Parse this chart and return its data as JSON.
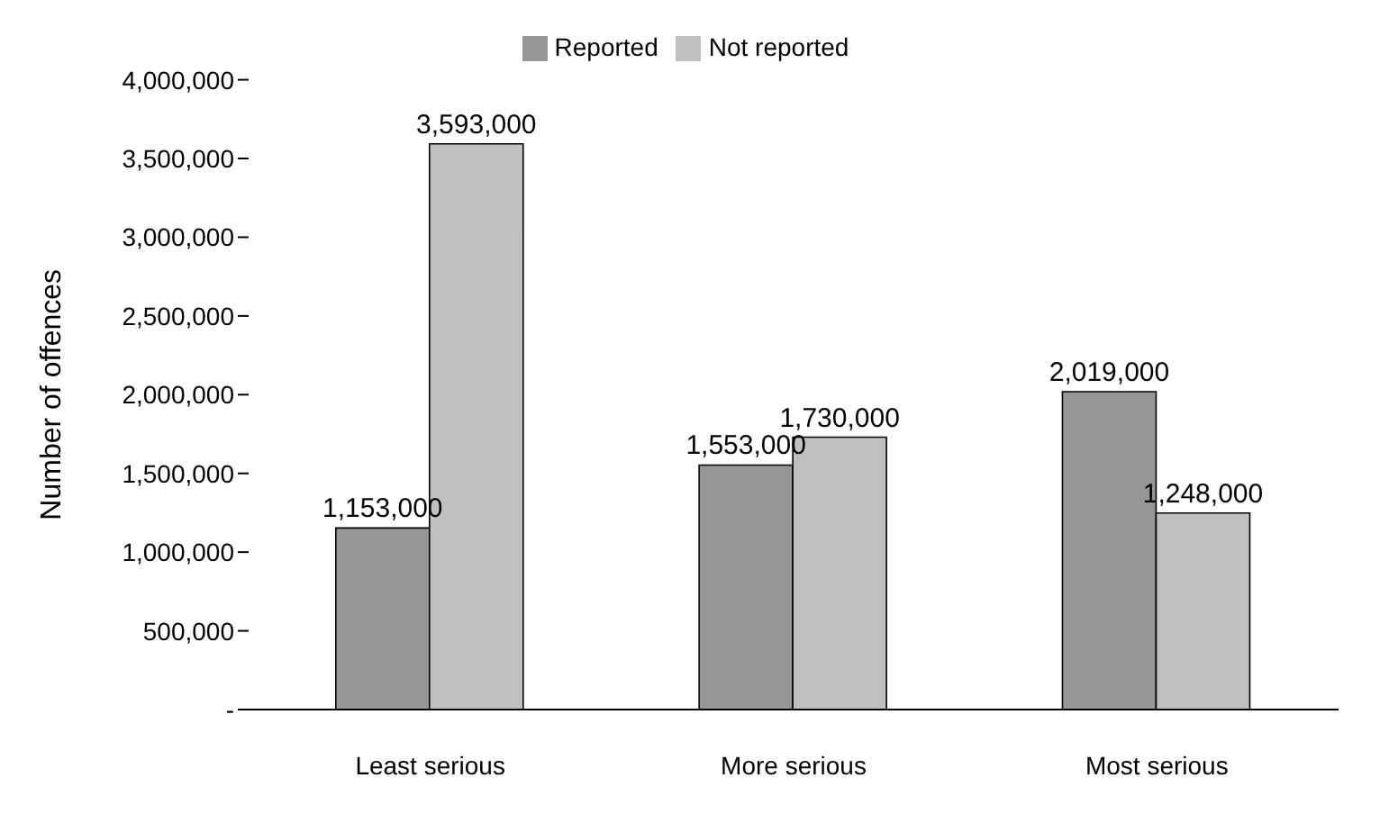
{
  "chart_data": {
    "type": "bar",
    "ylabel": "Number of offences",
    "categories": [
      "Least serious",
      "More serious",
      "Most serious"
    ],
    "series": [
      {
        "name": "Reported",
        "color": "#969696",
        "values": [
          1153000,
          1553000,
          2019000
        ],
        "value_labels": [
          "1,153,000",
          "1,553,000",
          "2,019,000"
        ]
      },
      {
        "name": "Not reported",
        "color": "#c0c0c0",
        "values": [
          3593000,
          1730000,
          1248000
        ],
        "value_labels": [
          "3,593,000",
          "1,730,000",
          "1,248,000"
        ]
      }
    ],
    "ylim": [
      0,
      4000000
    ],
    "yticks": [
      {
        "value": 0,
        "label": "-"
      },
      {
        "value": 500000,
        "label": "500,000"
      },
      {
        "value": 1000000,
        "label": "1,000,000"
      },
      {
        "value": 1500000,
        "label": "1,500,000"
      },
      {
        "value": 2000000,
        "label": "2,000,000"
      },
      {
        "value": 2500000,
        "label": "2,500,000"
      },
      {
        "value": 3000000,
        "label": "3,000,000"
      },
      {
        "value": 3500000,
        "label": "3,500,000"
      },
      {
        "value": 4000000,
        "label": "4,000,000"
      }
    ],
    "legend": "top",
    "grid": false
  }
}
